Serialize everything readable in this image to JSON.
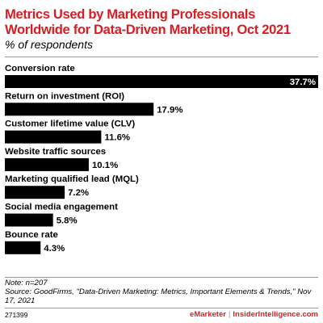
{
  "title": "Metrics Used by Marketing Professionals\nWorldwide for Data-Driven Marketing, Oct 2021",
  "subtitle": "% of respondents",
  "chart_data": {
    "type": "bar",
    "orientation": "horizontal",
    "title": "Metrics Used by Marketing Professionals Worldwide for Data-Driven Marketing, Oct 2021",
    "subtitle": "% of respondents",
    "categories": [
      "Conversion rate",
      "Return on investment (ROI)",
      "Customer lifetime value (CLV)",
      "Website traffic sources",
      "Marketing qualified lead (MQL)",
      "Social media engagement",
      "Bounce rate"
    ],
    "values": [
      37.7,
      17.9,
      11.6,
      10.1,
      7.2,
      5.8,
      4.3
    ],
    "value_labels": [
      "37.7%",
      "17.9%",
      "11.6%",
      "10.1%",
      "7.2%",
      "5.8%",
      "4.3%"
    ],
    "xlim": [
      0,
      37.7
    ],
    "grid": false,
    "bar_color": "#000000"
  },
  "note": "Note: n=207",
  "source": "Source: GoodFirms, \"Data-Driven Marketing: Metrics, Important Elements & Trends,\" Nov 17, 2021",
  "footer_id": "271399",
  "brand": {
    "emarketer": "eMarketer",
    "separator": "|",
    "insider": "InsiderIntelligence.com"
  },
  "colors": {
    "accent": "#d81e24",
    "bar": "#000000",
    "rule": "#999999"
  }
}
